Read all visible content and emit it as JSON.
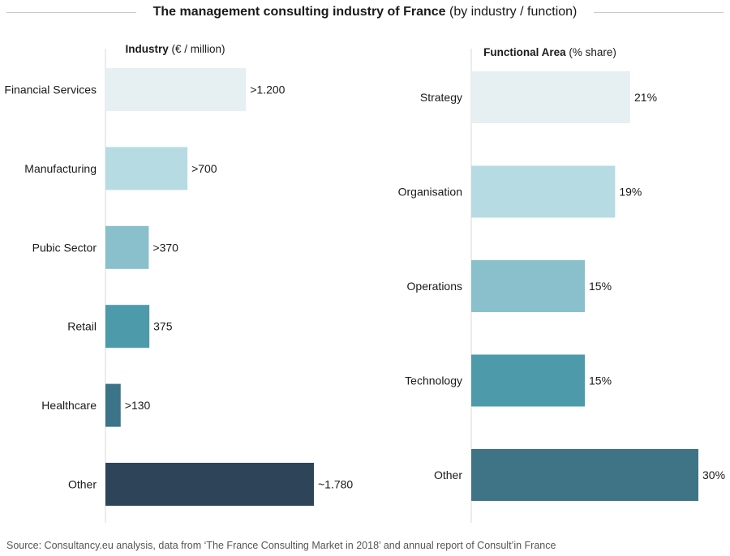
{
  "title": {
    "bold": "The management consulting industry of France",
    "normal": "(by industry / function)"
  },
  "source": "Source: Consultancy.eu analysis, data from ‘The France Consulting Market in 2018’ and annual report of Consult’in France",
  "chart_data": [
    {
      "type": "bar",
      "orientation": "horizontal",
      "title_bold": "Industry",
      "title_normal": "(€ / million)",
      "categories": [
        "Financial Services",
        "Manufacturing",
        "Pubic Sector",
        "Retail",
        "Healthcare",
        "Other"
      ],
      "values": [
        1200,
        700,
        370,
        375,
        130,
        1780
      ],
      "labels": [
        ">1.200",
        ">700",
        ">370",
        "375",
        ">130",
        "~1.780"
      ],
      "colors": [
        "#e6eff2",
        "#b6dbe3",
        "#89c0cb",
        "#4c9aaa",
        "#3b7489",
        "#2e4459"
      ],
      "xlim": [
        0,
        1780
      ],
      "grid": false,
      "legend": "none"
    },
    {
      "type": "bar",
      "orientation": "horizontal",
      "title_bold": "Functional Area",
      "title_normal": "(% share)",
      "categories": [
        "Strategy",
        "Organisation",
        "Operations",
        "Technology",
        "Other"
      ],
      "values": [
        21,
        19,
        15,
        15,
        30
      ],
      "labels": [
        "21%",
        "19%",
        "15%",
        "15%",
        "30%"
      ],
      "colors": [
        "#e6eff2",
        "#b6dbe3",
        "#89c0cb",
        "#4c9aaa",
        "#3f7386"
      ],
      "xlim": [
        0,
        30
      ],
      "grid": false,
      "legend": "none"
    }
  ]
}
